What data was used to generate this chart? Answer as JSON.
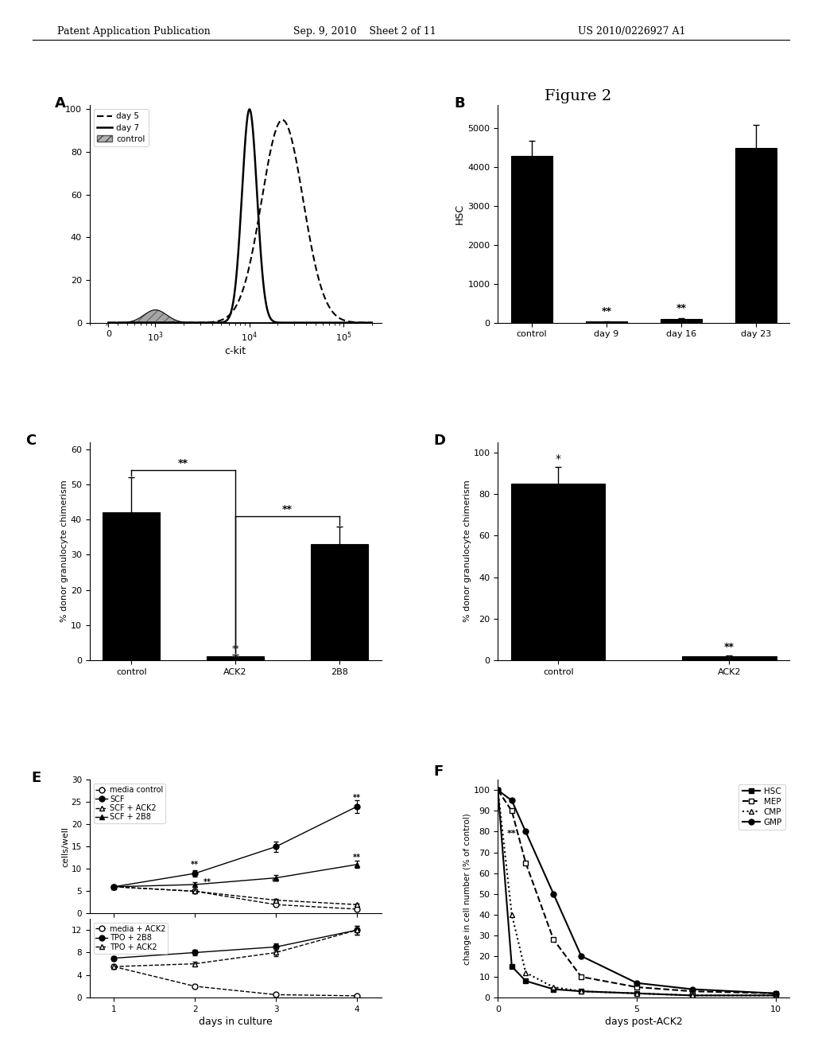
{
  "header_left": "Patent Application Publication",
  "header_mid": "Sep. 9, 2010    Sheet 2 of 11",
  "header_right": "US 2010/0226927 A1",
  "figure_title": "Figure 2",
  "panel_A": {
    "label": "A",
    "ylabel": "",
    "xlabel": "c-kit",
    "yticks": [
      0,
      20,
      40,
      60,
      80,
      100
    ],
    "legend": [
      "day 5",
      "day 7",
      "control"
    ]
  },
  "panel_B": {
    "label": "B",
    "ylabel": "HSC",
    "xlabel": "",
    "categories": [
      "control",
      "day 9",
      "day 16",
      "day 23"
    ],
    "values": [
      4300,
      30,
      100,
      4500
    ],
    "errors": [
      380,
      8,
      15,
      580
    ],
    "yticks": [
      0,
      1000,
      2000,
      3000,
      4000,
      5000
    ],
    "sig_markers": [
      "",
      "**",
      "**",
      ""
    ]
  },
  "panel_C": {
    "label": "C",
    "ylabel": "% donor granulocyte chimerism",
    "xlabel": "",
    "categories": [
      "control",
      "ACK2",
      "2B8"
    ],
    "values": [
      42,
      1,
      33
    ],
    "errors": [
      10,
      0.5,
      5
    ],
    "yticks": [
      0,
      10,
      20,
      30,
      40,
      50,
      60
    ],
    "ylim": [
      0,
      62
    ]
  },
  "panel_D": {
    "label": "D",
    "ylabel": "% donor granulocyte chimerism",
    "xlabel": "",
    "categories": [
      "control",
      "ACK2"
    ],
    "values": [
      85,
      2
    ],
    "errors": [
      8,
      0.3
    ],
    "yticks": [
      0,
      20,
      40,
      60,
      80,
      100
    ],
    "ylim": [
      0,
      105
    ]
  },
  "panel_E": {
    "label": "E",
    "xlabel": "days in culture",
    "ylabel": "cells/well",
    "upper": {
      "legend": [
        "media control",
        "SCF",
        "SCF + ACK2",
        "SCF + 2B8"
      ],
      "markers": [
        "o",
        "o",
        "^",
        "^"
      ],
      "filled": [
        false,
        true,
        false,
        true
      ],
      "linestyles": [
        "--",
        "-",
        "--",
        "-"
      ],
      "x": [
        1,
        2,
        3,
        4
      ],
      "data": [
        [
          6,
          5,
          2,
          1
        ],
        [
          6,
          9,
          15,
          24
        ],
        [
          6,
          5,
          3,
          2
        ],
        [
          6,
          6.5,
          8,
          11
        ]
      ],
      "errors": [
        [
          0.3,
          0.3,
          0.3,
          0.3
        ],
        [
          0.4,
          0.8,
          1.2,
          1.5
        ],
        [
          0.3,
          0.3,
          0.3,
          0.3
        ],
        [
          0.3,
          0.5,
          0.6,
          0.8
        ]
      ],
      "yticks": [
        0,
        5,
        10,
        15,
        20,
        25,
        30
      ],
      "ylim": [
        0,
        30
      ]
    },
    "lower": {
      "legend": [
        "media + ACK2",
        "TPO + 2B8",
        "TPO + ACK2"
      ],
      "markers": [
        "o",
        "o",
        "^"
      ],
      "filled": [
        false,
        true,
        false
      ],
      "linestyles": [
        "--",
        "-",
        "--"
      ],
      "x": [
        1,
        2,
        3,
        4
      ],
      "data": [
        [
          5.5,
          2,
          0.5,
          0.3
        ],
        [
          7,
          8,
          9,
          12
        ],
        [
          5.5,
          6,
          8,
          12
        ]
      ],
      "errors": [
        [
          0.3,
          0.3,
          0.1,
          0.1
        ],
        [
          0.4,
          0.5,
          0.6,
          0.8
        ],
        [
          0.3,
          0.4,
          0.6,
          0.8
        ]
      ],
      "yticks": [
        0,
        4,
        8,
        12
      ],
      "ylim": [
        0,
        14
      ]
    }
  },
  "panel_F": {
    "label": "F",
    "xlabel": "days post-ACK2",
    "ylabel": "change in cell number (% of control)",
    "legend": [
      "HSC",
      "MEP",
      "CMP",
      "GMP"
    ],
    "line_styles": [
      "-",
      "--",
      ":",
      "-"
    ],
    "markers": [
      "s",
      "s",
      "^",
      "o"
    ],
    "marker_filled": [
      true,
      false,
      false,
      true
    ],
    "x": [
      0,
      0.5,
      1,
      2,
      3,
      5,
      7,
      10
    ],
    "data": [
      [
        100,
        15,
        8,
        4,
        3,
        2,
        1,
        1
      ],
      [
        100,
        90,
        65,
        28,
        10,
        5,
        3,
        2
      ],
      [
        100,
        40,
        12,
        5,
        3,
        2,
        1,
        1
      ],
      [
        100,
        95,
        80,
        50,
        20,
        7,
        4,
        2
      ]
    ],
    "yticks": [
      0,
      10,
      20,
      30,
      40,
      50,
      60,
      70,
      80,
      90,
      100
    ],
    "ylim": [
      0,
      105
    ],
    "xlim": [
      0,
      10
    ]
  }
}
